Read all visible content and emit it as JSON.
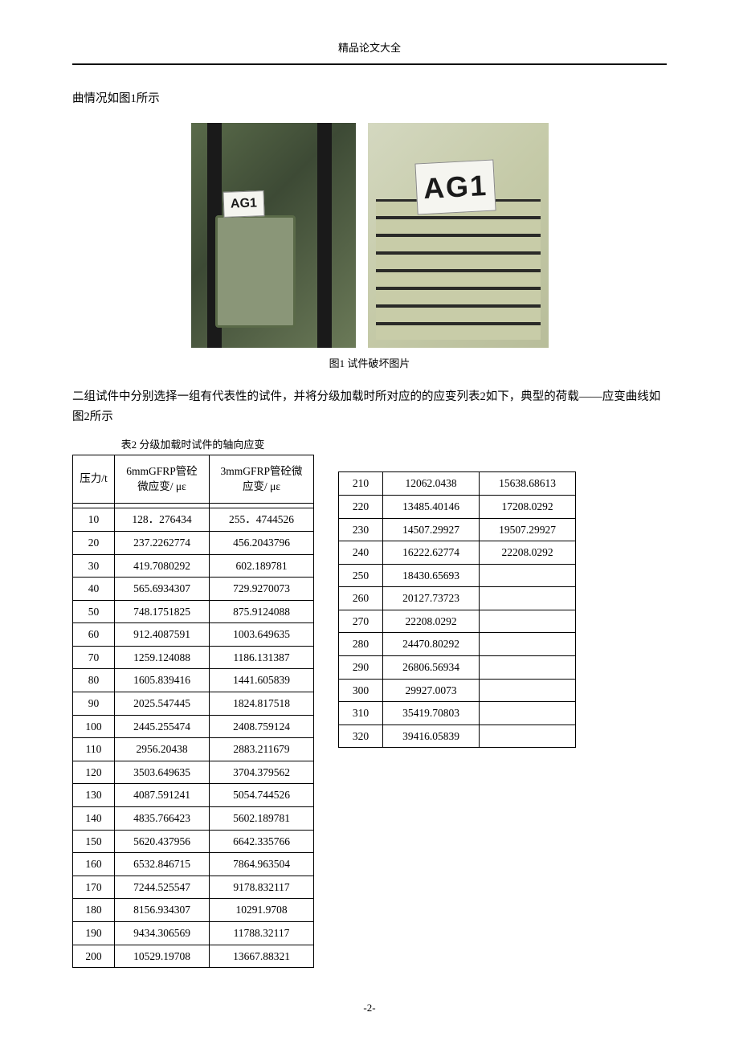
{
  "header": {
    "title": "精品论文大全"
  },
  "text": {
    "line1": "曲情况如图1所示",
    "fig_caption": "图1  试件破坏图片",
    "para2": "二组试件中分别选择一组有代表性的试件，并将分级加载时所对应的的应变列表2如下，典型的荷载——应变曲线如图2所示",
    "table_caption": "表2  分级加载时试件的轴向应变"
  },
  "photos": {
    "label1": "AG1",
    "label2": "AG1"
  },
  "table1": {
    "headers": [
      "压力/t",
      "6mmGFRP管砼微应变/ με",
      "3mmGFRP管砼微应变/ με"
    ],
    "rows": [
      [
        "10",
        "128．276434",
        "255．4744526"
      ],
      [
        "20",
        "237.2262774",
        "456.2043796"
      ],
      [
        "30",
        "419.7080292",
        "602.189781"
      ],
      [
        "40",
        "565.6934307",
        "729.9270073"
      ],
      [
        "50",
        "748.1751825",
        "875.9124088"
      ],
      [
        "60",
        "912.4087591",
        "1003.649635"
      ],
      [
        "70",
        "1259.124088",
        "1186.131387"
      ],
      [
        "80",
        "1605.839416",
        "1441.605839"
      ],
      [
        "90",
        "2025.547445",
        "1824.817518"
      ],
      [
        "100",
        "2445.255474",
        "2408.759124"
      ],
      [
        "110",
        "2956.20438",
        "2883.211679"
      ],
      [
        "120",
        "3503.649635",
        "3704.379562"
      ],
      [
        "130",
        "4087.591241",
        "5054.744526"
      ],
      [
        "140",
        "4835.766423",
        "5602.189781"
      ],
      [
        "150",
        "5620.437956",
        "6642.335766"
      ],
      [
        "160",
        "6532.846715",
        "7864.963504"
      ],
      [
        "170",
        "7244.525547",
        "9178.832117"
      ],
      [
        "180",
        "8156.934307",
        "10291.9708"
      ],
      [
        "190",
        "9434.306569",
        "11788.32117"
      ],
      [
        "200",
        "10529.19708",
        "13667.88321"
      ]
    ]
  },
  "table2": {
    "rows": [
      [
        "210",
        "12062.0438",
        "15638.68613"
      ],
      [
        "220",
        "13485.40146",
        "17208.0292"
      ],
      [
        "230",
        "14507.29927",
        "19507.29927"
      ],
      [
        "240",
        "16222.62774",
        "22208.0292"
      ],
      [
        "250",
        "18430.65693",
        ""
      ],
      [
        "260",
        "20127.73723",
        ""
      ],
      [
        "270",
        "22208.0292",
        ""
      ],
      [
        "280",
        "24470.80292",
        ""
      ],
      [
        "290",
        "26806.56934",
        ""
      ],
      [
        "300",
        "29927.0073",
        ""
      ],
      [
        "310",
        "35419.70803",
        ""
      ],
      [
        "320",
        "39416.05839",
        ""
      ]
    ]
  },
  "footer": {
    "page": "-2-"
  }
}
